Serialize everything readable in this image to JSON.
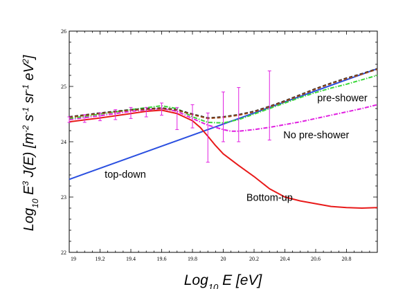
{
  "chart_data": {
    "type": "line",
    "xlabel": {
      "main": "Log",
      "sub": "10",
      "rest": " E [eV]"
    },
    "ylabel": {
      "main": "Log",
      "sub": "10",
      "e": " E",
      "esup": "3",
      "rest": " J(E) [m",
      "s1": "-2",
      "p2": " s",
      "s2": "-1",
      "p3": " sr",
      "s3": "-1",
      "p4": " eV",
      "s4": "2",
      "end": "]"
    },
    "xlim": [
      19,
      21
    ],
    "ylim": [
      22,
      26
    ],
    "x_ticks": [
      "19",
      "19.2",
      "19.4",
      "19.6",
      "19.8",
      "20",
      "20.2",
      "20.4",
      "20.6",
      "20.8"
    ],
    "x_tick_values": [
      19,
      19.2,
      19.4,
      19.6,
      19.8,
      20,
      20.2,
      20.4,
      20.6,
      20.8
    ],
    "y_ticks": [
      "22",
      "23",
      "24",
      "25",
      "26"
    ],
    "y_tick_values": [
      22,
      23,
      24,
      25,
      26
    ],
    "series": [
      {
        "key": "top-down",
        "color": "#2a4fe0",
        "dash": "",
        "x": [
          19.0,
          21.0
        ],
        "y": [
          23.32,
          25.32
        ]
      },
      {
        "key": "bottom-up",
        "color": "#e81919",
        "dash": "",
        "x": [
          19.0,
          19.2,
          19.4,
          19.5,
          19.6,
          19.7,
          19.8,
          19.85,
          19.9,
          19.95,
          20.0,
          20.1,
          20.2,
          20.3,
          20.4,
          20.5,
          20.6,
          20.7,
          20.8,
          20.9,
          21.0
        ],
        "y": [
          24.36,
          24.43,
          24.51,
          24.55,
          24.57,
          24.51,
          24.38,
          24.26,
          24.1,
          23.93,
          23.78,
          23.57,
          23.37,
          23.15,
          23.0,
          22.93,
          22.88,
          22.83,
          22.81,
          22.8,
          22.81
        ]
      },
      {
        "key": "no-pre-shower",
        "color": "#e01fe0",
        "dash": "6,2,1.5,2",
        "x": [
          19.0,
          19.2,
          19.4,
          19.6,
          19.7,
          19.8,
          19.9,
          20.0,
          20.05,
          20.1,
          20.2,
          20.3,
          20.4,
          20.5,
          20.6,
          20.7,
          20.8,
          20.9,
          21.0
        ],
        "y": [
          24.4,
          24.47,
          24.55,
          24.6,
          24.55,
          24.42,
          24.3,
          24.22,
          24.19,
          24.19,
          24.22,
          24.26,
          24.31,
          24.36,
          24.42,
          24.48,
          24.54,
          24.6,
          24.67
        ]
      },
      {
        "key": "pre-shower",
        "color": "#3ad83a",
        "dash": "6,2,1.5,2",
        "x": [
          19.0,
          19.2,
          19.4,
          19.6,
          19.7,
          19.8,
          19.9,
          20.0,
          20.1,
          20.2,
          20.3,
          20.4,
          20.5,
          20.6,
          20.7,
          20.8,
          20.9,
          21.0
        ],
        "y": [
          24.42,
          24.5,
          24.58,
          24.65,
          24.6,
          24.45,
          24.35,
          24.34,
          24.4,
          24.5,
          24.6,
          24.7,
          24.8,
          24.89,
          24.97,
          25.04,
          25.12,
          25.2
        ]
      },
      {
        "key": "total-black",
        "color": "#1a1a1a",
        "dash": "5,3",
        "x": [
          19.0,
          19.2,
          19.4,
          19.6,
          19.7,
          19.8,
          19.9,
          20.0,
          20.1,
          20.2,
          20.3,
          20.4,
          20.5,
          20.6,
          20.7,
          20.8,
          20.9,
          21.0
        ],
        "y": [
          24.45,
          24.52,
          24.58,
          24.61,
          24.58,
          24.5,
          24.43,
          24.45,
          24.49,
          24.55,
          24.64,
          24.74,
          24.85,
          24.96,
          25.06,
          25.15,
          25.23,
          25.32
        ]
      },
      {
        "key": "total-brown",
        "color": "#9b4a1e",
        "dash": "5,3",
        "x": [
          19.0,
          19.2,
          19.4,
          19.6,
          19.7,
          19.8,
          19.9,
          20.0,
          20.1,
          20.2,
          20.3,
          20.4,
          20.5,
          20.6,
          20.7,
          20.8,
          20.9,
          21.0
        ],
        "y": [
          24.44,
          24.51,
          24.57,
          24.6,
          24.57,
          24.49,
          24.42,
          24.44,
          24.48,
          24.54,
          24.63,
          24.73,
          24.84,
          24.95,
          25.05,
          25.14,
          25.22,
          25.31
        ]
      }
    ],
    "data_points": {
      "color": "#e01fe0",
      "points": [
        {
          "x": 19.0,
          "y": 24.4,
          "lo": 24.35,
          "hi": 24.45
        },
        {
          "x": 19.1,
          "y": 24.42,
          "lo": 24.35,
          "hi": 24.49
        },
        {
          "x": 19.2,
          "y": 24.45,
          "lo": 24.38,
          "hi": 24.52
        },
        {
          "x": 19.3,
          "y": 24.5,
          "lo": 24.4,
          "hi": 24.58
        },
        {
          "x": 19.4,
          "y": 24.52,
          "lo": 24.42,
          "hi": 24.62
        },
        {
          "x": 19.5,
          "y": 24.55,
          "lo": 24.45,
          "hi": 24.62
        },
        {
          "x": 19.6,
          "y": 24.58,
          "lo": 24.48,
          "hi": 24.7
        },
        {
          "x": 19.7,
          "y": 24.45,
          "lo": 24.22,
          "hi": 24.62
        },
        {
          "x": 19.8,
          "y": 24.46,
          "lo": 24.25,
          "hi": 24.67
        },
        {
          "x": 19.9,
          "y": 24.2,
          "lo": 23.63,
          "hi": 24.52
        },
        {
          "x": 20.0,
          "y": 24.45,
          "lo": 24.0,
          "hi": 24.9
        },
        {
          "x": 20.1,
          "y": 24.48,
          "lo": 24.0,
          "hi": 24.98
        },
        {
          "x": 20.3,
          "y": 24.7,
          "lo": 24.03,
          "hi": 25.28
        }
      ]
    },
    "annotations": [
      {
        "key": "top-down",
        "text": "top-down",
        "x": 19.23,
        "y": 23.35
      },
      {
        "key": "bottom-up",
        "text": "Bottom-up",
        "x": 20.15,
        "y": 22.93
      },
      {
        "key": "pre-shower",
        "text": "pre-shower",
        "x": 20.61,
        "y": 24.73
      },
      {
        "key": "no-pre-shower",
        "text": "No pre-shower",
        "x": 20.39,
        "y": 24.06
      }
    ]
  }
}
